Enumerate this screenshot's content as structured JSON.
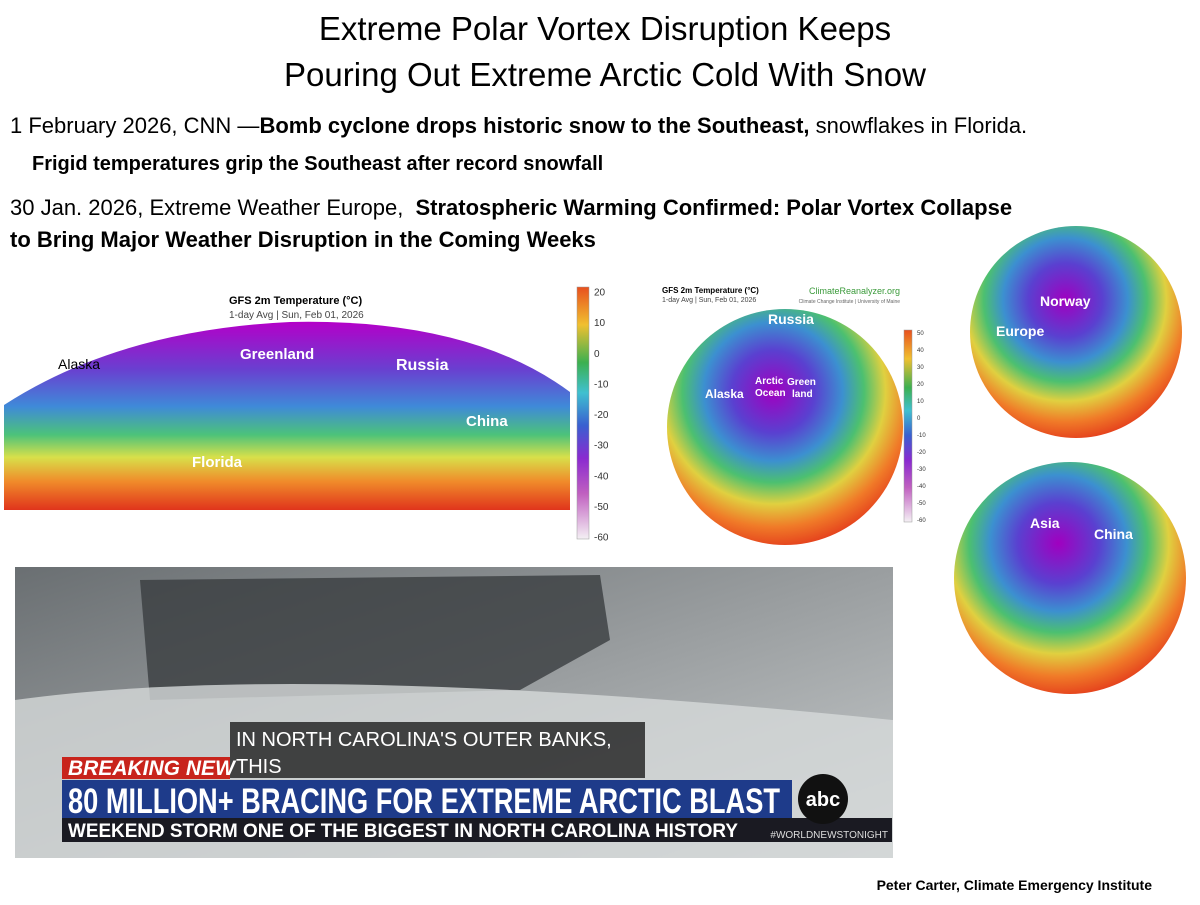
{
  "title": [
    "Extreme Polar Vortex Disruption Keeps",
    "Pouring  Out Extreme Arctic Cold With Snow"
  ],
  "news": [
    {
      "lead": "1 February 2026, CNN —",
      "headline": "Bomb cyclone drops historic snow to the Southeast,",
      "tail": " snowflakes in Florida.",
      "subheadline": "Frigid temperatures grip the Southeast after record snowfall"
    },
    {
      "lead": "30 Jan. 2026, Extreme Weather Europe, ",
      "headline": [
        "Stratospheric Warming Confirmed: Polar Vortex Collapse",
        "to Bring Major Weather Disruption in the Coming Weeks"
      ]
    }
  ],
  "map_flat": {
    "title": "GFS 2m Temperature (°C)",
    "subtitle": "1-day Avg | Sun, Feb 01, 2026",
    "labels": [
      "Alaska",
      "Greenland",
      "Russia",
      "China",
      "Florida"
    ],
    "colorbar": [
      20,
      10,
      0,
      -10,
      -20,
      -30,
      -40,
      -50,
      -60
    ]
  },
  "map_globe": {
    "title": "GFS 2m Temperature (°C)",
    "subtitle": "1-day Avg | Sun, Feb 01, 2026",
    "source": "ClimateReanalyzer.org",
    "source_sub": "Climate Change Institute | University of Maine",
    "labels": [
      "Russia",
      "Arctic",
      "Ocean",
      "Green",
      "land",
      "Alaska"
    ],
    "colorbar": [
      50,
      40,
      30,
      20,
      10,
      0,
      -10,
      -20,
      -30,
      -40,
      -50,
      -60
    ]
  },
  "globe_europe": [
    "Norway",
    "Europe"
  ],
  "globe_asia": [
    "Asia",
    "China"
  ],
  "video": {
    "caption": [
      "IN NORTH CAROLINA'S OUTER BANKS,",
      "THIS"
    ],
    "breaking": "BREAKING NEW",
    "headline": "80 MILLION+ BRACING FOR EXTREME ARCTIC BLAST",
    "ticker": "WEEKEND STORM ONE OF THE BIGGEST IN NORTH CAROLINA HISTORY",
    "logo": "abc",
    "hashtag": "#WORLDNEWSTONIGHT"
  },
  "credit": "Peter Carter, Climate Emergency Institute"
}
